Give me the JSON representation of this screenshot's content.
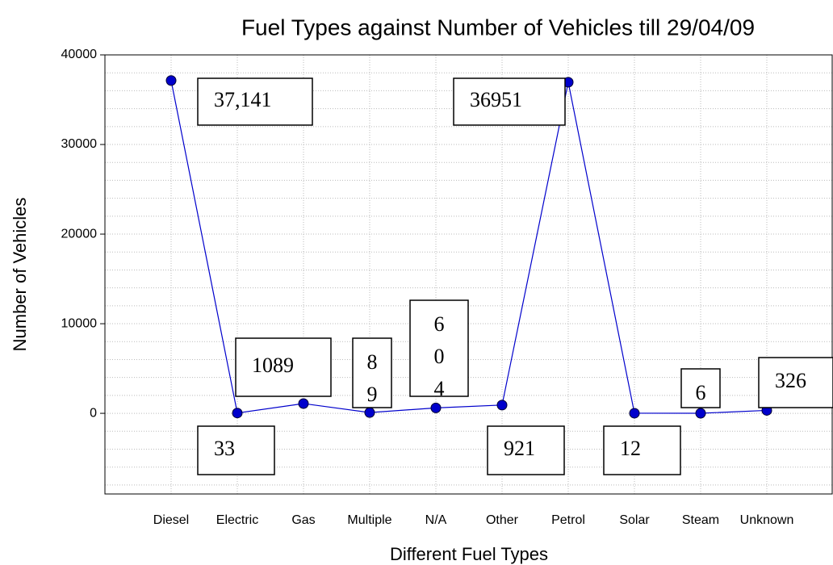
{
  "chart_data": {
    "type": "line",
    "title": "Fuel Types against Number of Vehicles till 29/04/09",
    "x_label": "Different Fuel Types",
    "y_label": "Number of Vehicles",
    "categories": [
      "Diesel",
      "Electric",
      "Gas",
      "Multiple",
      "N/A",
      "Other",
      "Petrol",
      "Solar",
      "Steam",
      "Unknown"
    ],
    "series": [
      {
        "name": "Number of Vehicles",
        "color": "#0000cc",
        "values": [
          37141,
          33,
          1089,
          89,
          604,
          921,
          36951,
          12,
          6,
          326
        ],
        "value_labels": [
          "37,141",
          "33",
          "1089",
          "89",
          "604",
          "921",
          "36951",
          "12",
          "6",
          "326"
        ]
      }
    ],
    "ylim": [
      -9000,
      40000
    ],
    "yticks": [
      0,
      10000,
      20000,
      30000,
      40000
    ],
    "grid": true
  }
}
